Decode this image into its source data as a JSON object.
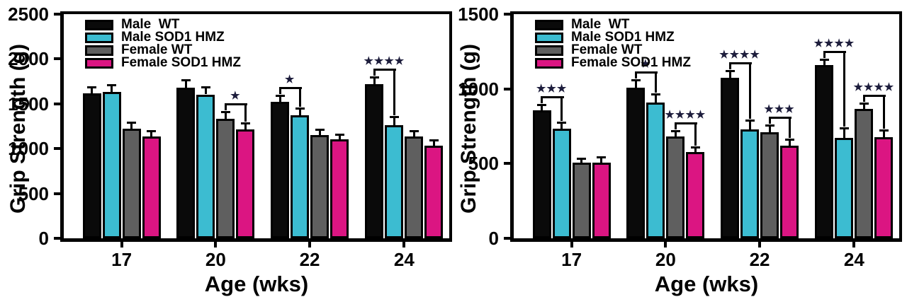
{
  "figure": {
    "background": "#ffffff",
    "significance_star_color": "#1d1d3c",
    "axis_color": "#000000"
  },
  "chart_data": [
    {
      "type": "bar",
      "panel": "left",
      "title": "",
      "ylabel": "Grip Strength (g)",
      "xlabel": "Age (wks)",
      "ylim": [
        0,
        2500
      ],
      "yticks": [
        0,
        500,
        1000,
        1500,
        2000,
        2500
      ],
      "categories": [
        "17",
        "20",
        "22",
        "24"
      ],
      "grid": false,
      "legend_position": "top-left",
      "series": [
        {
          "name": "Male  WT",
          "color": "#0a0a0a",
          "values": [
            1615,
            1680,
            1520,
            1720
          ],
          "errors": [
            60,
            70,
            55,
            65
          ]
        },
        {
          "name": "Male SOD1 HMZ",
          "color": "#3cbcd1",
          "values": [
            1635,
            1605,
            1375,
            1265
          ],
          "errors": [
            60,
            65,
            60,
            75
          ]
        },
        {
          "name": "Female WT",
          "color": "#5f5f5f",
          "values": [
            1225,
            1335,
            1150,
            1135
          ],
          "errors": [
            55,
            60,
            45,
            50
          ]
        },
        {
          "name": "Female SOD1 HMZ",
          "color": "#db1582",
          "values": [
            1135,
            1215,
            1105,
            1030
          ],
          "errors": [
            50,
            55,
            40,
            50
          ]
        }
      ],
      "significance": [
        {
          "category": "20",
          "from": "Female WT",
          "to": "Female SOD1 HMZ",
          "label": "*"
        },
        {
          "category": "22",
          "from": "Male  WT",
          "to": "Male SOD1 HMZ",
          "label": "*"
        },
        {
          "category": "24",
          "from": "Male  WT",
          "to": "Male SOD1 HMZ",
          "label": "****"
        }
      ]
    },
    {
      "type": "bar",
      "panel": "right",
      "title": "",
      "ylabel": "Grip Strength (g)",
      "xlabel": "Age (wks)",
      "ylim": [
        0,
        1500
      ],
      "yticks": [
        0,
        500,
        1000,
        1500
      ],
      "categories": [
        "17",
        "20",
        "22",
        "24"
      ],
      "grid": false,
      "legend_position": "top-left",
      "series": [
        {
          "name": "Male  WT",
          "color": "#0a0a0a",
          "values": [
            855,
            1010,
            1075,
            1160
          ],
          "errors": [
            30,
            40,
            35,
            30
          ]
        },
        {
          "name": "Male SOD1 HMZ",
          "color": "#3cbcd1",
          "values": [
            735,
            910,
            730,
            670
          ],
          "errors": [
            30,
            45,
            50,
            60
          ]
        },
        {
          "name": "Female WT",
          "color": "#5f5f5f",
          "values": [
            505,
            680,
            710,
            865
          ],
          "errors": [
            20,
            30,
            40,
            30
          ]
        },
        {
          "name": "Female SOD1 HMZ",
          "color": "#db1582",
          "values": [
            505,
            575,
            620,
            675
          ],
          "errors": [
            30,
            28,
            32,
            40
          ]
        }
      ],
      "significance": [
        {
          "category": "17",
          "from": "Male  WT",
          "to": "Male SOD1 HMZ",
          "label": "***"
        },
        {
          "category": "20",
          "from": "Male  WT",
          "to": "Male SOD1 HMZ",
          "label": "*"
        },
        {
          "category": "20",
          "from": "Female WT",
          "to": "Female SOD1 HMZ",
          "label": "****"
        },
        {
          "category": "22",
          "from": "Male  WT",
          "to": "Male SOD1 HMZ",
          "label": "****"
        },
        {
          "category": "22",
          "from": "Female WT",
          "to": "Female SOD1 HMZ",
          "label": "***"
        },
        {
          "category": "24",
          "from": "Male  WT",
          "to": "Male SOD1 HMZ",
          "label": "****"
        },
        {
          "category": "24",
          "from": "Female WT",
          "to": "Female SOD1 HMZ",
          "label": "****"
        }
      ]
    }
  ]
}
